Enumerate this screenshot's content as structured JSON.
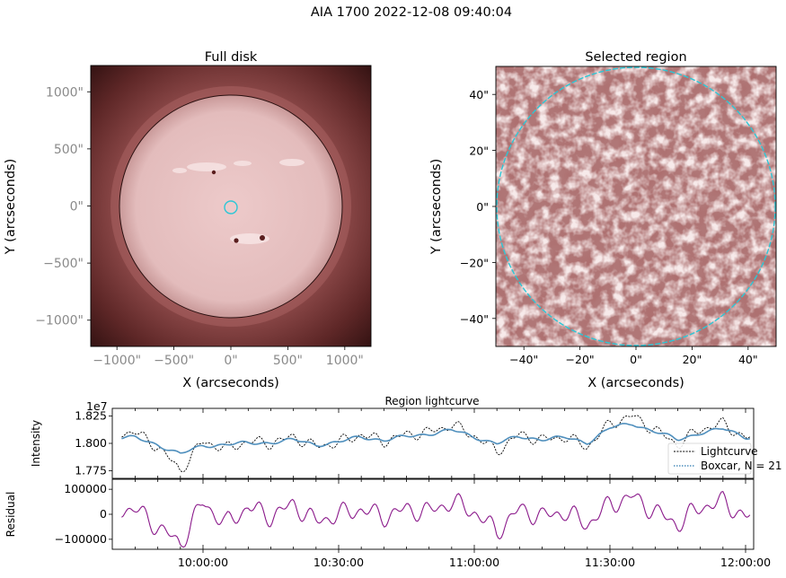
{
  "figure": {
    "title": "AIA 1700 2022-12-08 09:40:04"
  },
  "colors": {
    "disk": "#e7c2c2",
    "disk_edge": "#c9a0a0",
    "background_inner": "#7a3b3b",
    "background_outer": "#3a1616",
    "region_light": "#e8c6c6",
    "region_dark": "#7b3434",
    "circle": "#2cc7d6",
    "lightcurve": "#000000",
    "boxcar": "#4f8fbd",
    "residual": "#8b1a8b"
  },
  "full_disk": {
    "title": "Full disk",
    "xlabel": "X (arcseconds)",
    "ylabel": "Y (arcseconds)",
    "xticks": [
      "−1000\"",
      "−500\"",
      "0\"",
      "500\"",
      "1000\""
    ],
    "yticks": [
      "1000\"",
      "500\"",
      "0\"",
      "−500\"",
      "−1000\""
    ],
    "xlim": [
      -1230,
      1230
    ],
    "ylim": [
      -1230,
      1230
    ],
    "solar_radius": 975,
    "region_circle": {
      "x": 0,
      "y": 0,
      "r": 55
    }
  },
  "region": {
    "title": "Selected region",
    "xlabel": "X (arcseconds)",
    "ylabel": "Y (arcseconds)",
    "xticks": [
      "−40\"",
      "−20\"",
      "0\"",
      "20\"",
      "40\""
    ],
    "yticks": [
      "40\"",
      "20\"",
      "0\"",
      "−20\"",
      "−40\""
    ],
    "xlim": [
      -50,
      50
    ],
    "ylim": [
      -50,
      50
    ],
    "circle_radius": 50
  },
  "lightcurve": {
    "title": "Region lightcurve",
    "ylabel": "Intensity",
    "exponent": "1e7",
    "yticks": [
      "1.825",
      "1.800",
      "1.775"
    ],
    "ylim": [
      1.768,
      1.832
    ],
    "legend": {
      "entries": [
        "Lightcurve",
        "Boxcar, N = 21"
      ],
      "position": "lower-right"
    }
  },
  "residual": {
    "ylabel": "Residual",
    "yticks": [
      "100000",
      "0",
      "−100000"
    ],
    "ylim": [
      -140000,
      140000
    ],
    "xticks": [
      "10:00:00",
      "10:30:00",
      "11:00:00",
      "11:30:00",
      "12:00:00"
    ],
    "time_range": [
      "09:40:04",
      "12:00:00"
    ]
  },
  "chart_data": [
    {
      "type": "heatmap",
      "title": "Full disk",
      "xlabel": "X (arcseconds)",
      "ylabel": "Y (arcseconds)",
      "xlim": [
        -1230,
        1230
      ],
      "ylim": [
        -1230,
        1230
      ]
    },
    {
      "type": "heatmap",
      "title": "Selected region",
      "xlabel": "X (arcseconds)",
      "ylabel": "Y (arcseconds)",
      "xlim": [
        -50,
        50
      ],
      "ylim": [
        -50,
        50
      ]
    },
    {
      "type": "line",
      "title": "Region lightcurve",
      "ylabel": "Intensity",
      "y_scale_note": "1e7",
      "x": [
        "09:45",
        "09:50",
        "09:55",
        "10:00",
        "10:05",
        "10:10",
        "10:15",
        "10:20",
        "10:25",
        "10:30",
        "10:35",
        "10:40",
        "10:45",
        "10:50",
        "10:55",
        "11:00",
        "11:05",
        "11:10",
        "11:15",
        "11:20",
        "11:25",
        "11:30",
        "11:35",
        "11:40",
        "11:45",
        "11:50",
        "11:55",
        "12:00"
      ],
      "series": [
        {
          "name": "Lightcurve",
          "values": [
            1.81,
            1.797,
            1.775,
            1.802,
            1.795,
            1.802,
            1.8,
            1.806,
            1.797,
            1.801,
            1.808,
            1.802,
            1.808,
            1.81,
            1.817,
            1.807,
            1.793,
            1.808,
            1.803,
            1.806,
            1.797,
            1.818,
            1.825,
            1.812,
            1.799,
            1.813,
            1.818,
            1.805
          ]
        },
        {
          "name": "Boxcar, N = 21",
          "values": [
            1.805,
            1.799,
            1.79,
            1.798,
            1.799,
            1.8,
            1.801,
            1.803,
            1.799,
            1.801,
            1.806,
            1.803,
            1.806,
            1.809,
            1.812,
            1.806,
            1.8,
            1.806,
            1.804,
            1.805,
            1.801,
            1.814,
            1.818,
            1.811,
            1.803,
            1.81,
            1.813,
            1.806
          ]
        }
      ]
    },
    {
      "type": "line",
      "ylabel": "Residual",
      "xticks": [
        "10:00:00",
        "10:30:00",
        "11:00:00",
        "11:30:00",
        "12:00:00"
      ],
      "series": [
        {
          "name": "Residual",
          "values": [
            20000,
            -50000,
            -120000,
            50000,
            -40000,
            30000,
            -10000,
            40000,
            -30000,
            0,
            20000,
            -10000,
            20000,
            10000,
            50000,
            10000,
            -70000,
            20000,
            -10000,
            10000,
            -40000,
            40000,
            70000,
            10000,
            -40000,
            30000,
            50000,
            -10000
          ]
        }
      ]
    }
  ]
}
